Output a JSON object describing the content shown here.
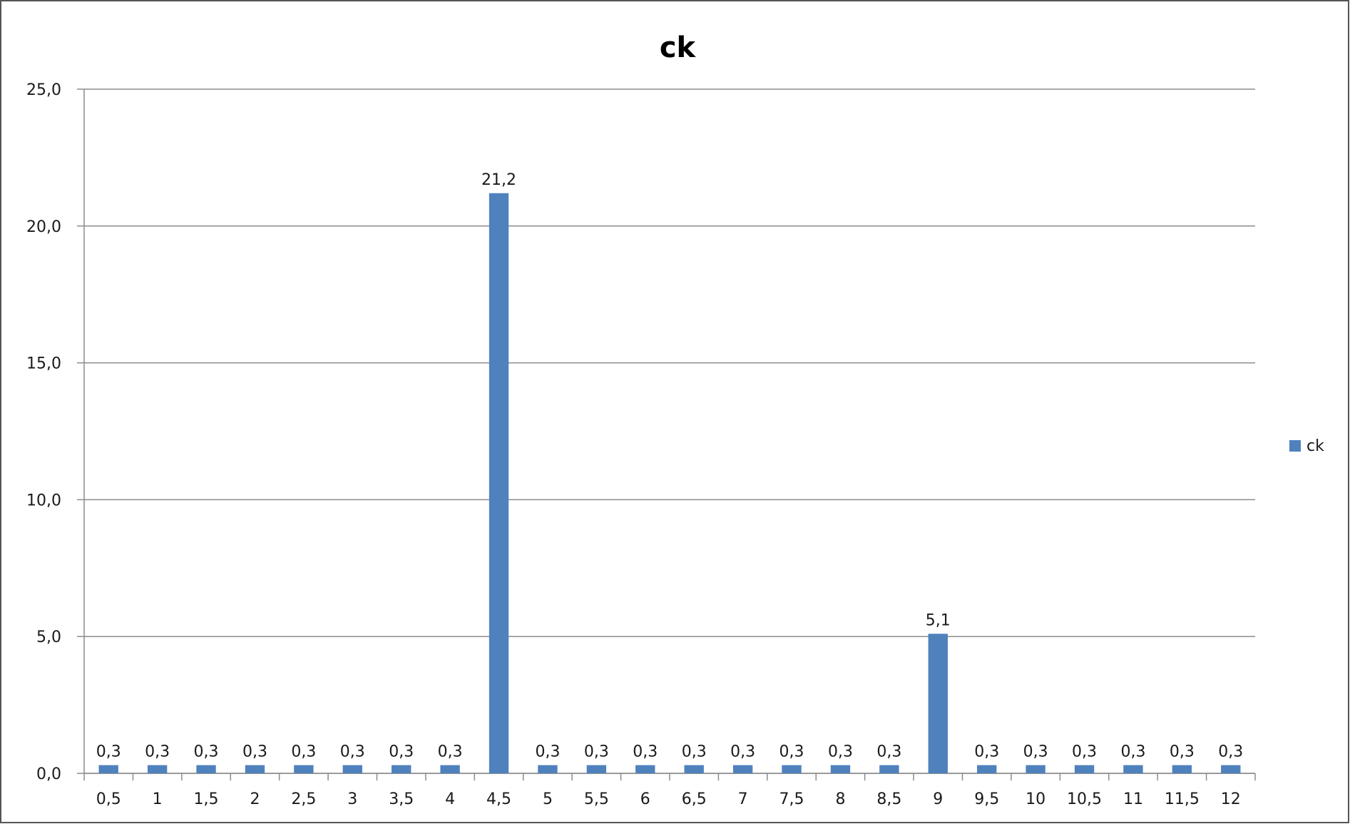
{
  "chart_data": {
    "type": "bar",
    "title": "ck",
    "xlabel": "",
    "ylabel": "",
    "categories": [
      "0,5",
      "1",
      "1,5",
      "2",
      "2,5",
      "3",
      "3,5",
      "4",
      "4,5",
      "5",
      "5,5",
      "6",
      "6,5",
      "7",
      "7,5",
      "8",
      "8,5",
      "9",
      "9,5",
      "10",
      "10,5",
      "11",
      "11,5",
      "12"
    ],
    "series": [
      {
        "name": "ck",
        "color": "#4f81bd",
        "values": [
          0.3,
          0.3,
          0.3,
          0.3,
          0.3,
          0.3,
          0.3,
          0.3,
          21.2,
          0.3,
          0.3,
          0.3,
          0.3,
          0.3,
          0.3,
          0.3,
          0.3,
          5.1,
          0.3,
          0.3,
          0.3,
          0.3,
          0.3,
          0.3
        ],
        "data_labels": [
          "0,3",
          "0,3",
          "0,3",
          "0,3",
          "0,3",
          "0,3",
          "0,3",
          "0,3",
          "21,2",
          "0,3",
          "0,3",
          "0,3",
          "0,3",
          "0,3",
          "0,3",
          "0,3",
          "0,3",
          "5,1",
          "0,3",
          "0,3",
          "0,3",
          "0,3",
          "0,3",
          "0,3"
        ]
      }
    ],
    "ylim": [
      0,
      25
    ],
    "y_ticks": [
      {
        "value": 0,
        "label": "0,0"
      },
      {
        "value": 5,
        "label": "5,0"
      },
      {
        "value": 10,
        "label": "10,0"
      },
      {
        "value": 15,
        "label": "15,0"
      },
      {
        "value": 20,
        "label": "20,0"
      },
      {
        "value": 25,
        "label": "25,0"
      }
    ],
    "grid": true,
    "legend_position": "right"
  }
}
